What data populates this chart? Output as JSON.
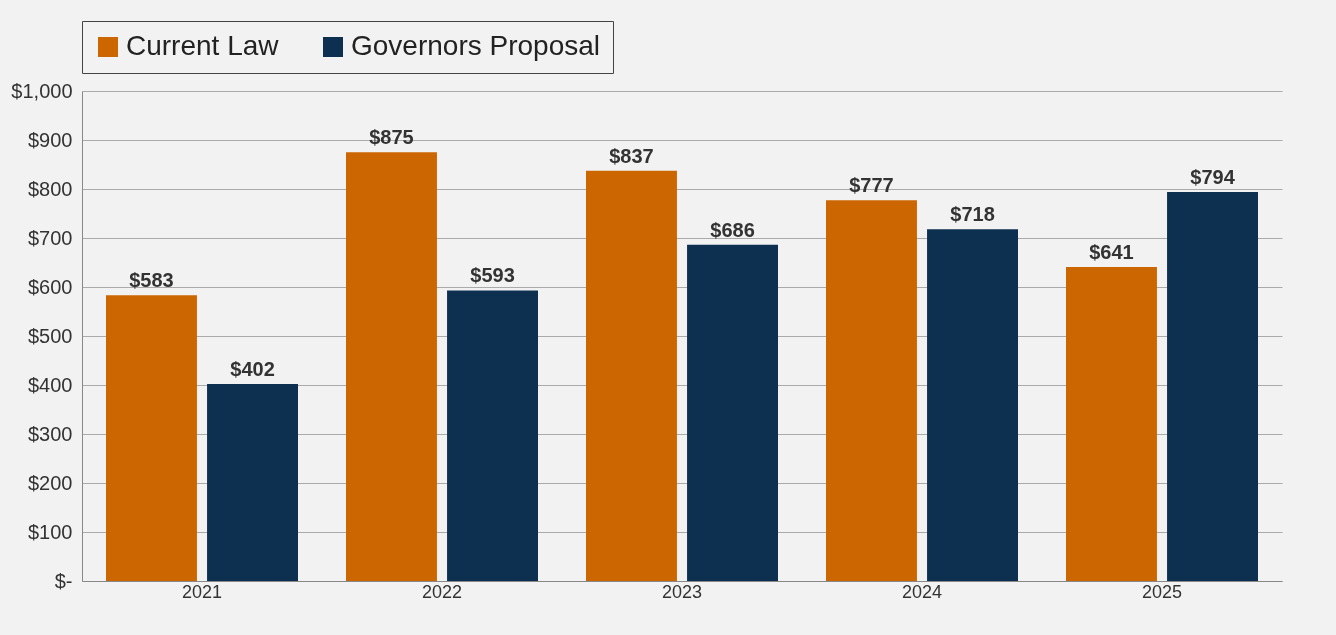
{
  "chart_data": {
    "type": "bar",
    "categories": [
      "2021",
      "2022",
      "2023",
      "2024",
      "2025"
    ],
    "series": [
      {
        "name": "Current Law",
        "color": "#cc6600",
        "values": [
          583,
          875,
          837,
          777,
          641
        ],
        "value_labels": [
          "$583",
          "$875",
          "$837",
          "$777",
          "$641"
        ]
      },
      {
        "name": "Governors Proposal",
        "color": "#0e3050",
        "values": [
          402,
          593,
          686,
          718,
          794
        ],
        "value_labels": [
          "$402",
          "$593",
          "$686",
          "$718",
          "$794"
        ]
      }
    ],
    "ylim": [
      0,
      1000
    ],
    "yticks": [
      {
        "value": 0,
        "label": "$-"
      },
      {
        "value": 100,
        "label": "$100"
      },
      {
        "value": 200,
        "label": "$200"
      },
      {
        "value": 300,
        "label": "$300"
      },
      {
        "value": 400,
        "label": "$400"
      },
      {
        "value": 500,
        "label": "$500"
      },
      {
        "value": 600,
        "label": "$600"
      },
      {
        "value": 700,
        "label": "$700"
      },
      {
        "value": 800,
        "label": "$800"
      },
      {
        "value": 900,
        "label": "$900"
      },
      {
        "value": 1000,
        "label": "$1,000"
      }
    ],
    "grid": "y",
    "legend": "top"
  }
}
